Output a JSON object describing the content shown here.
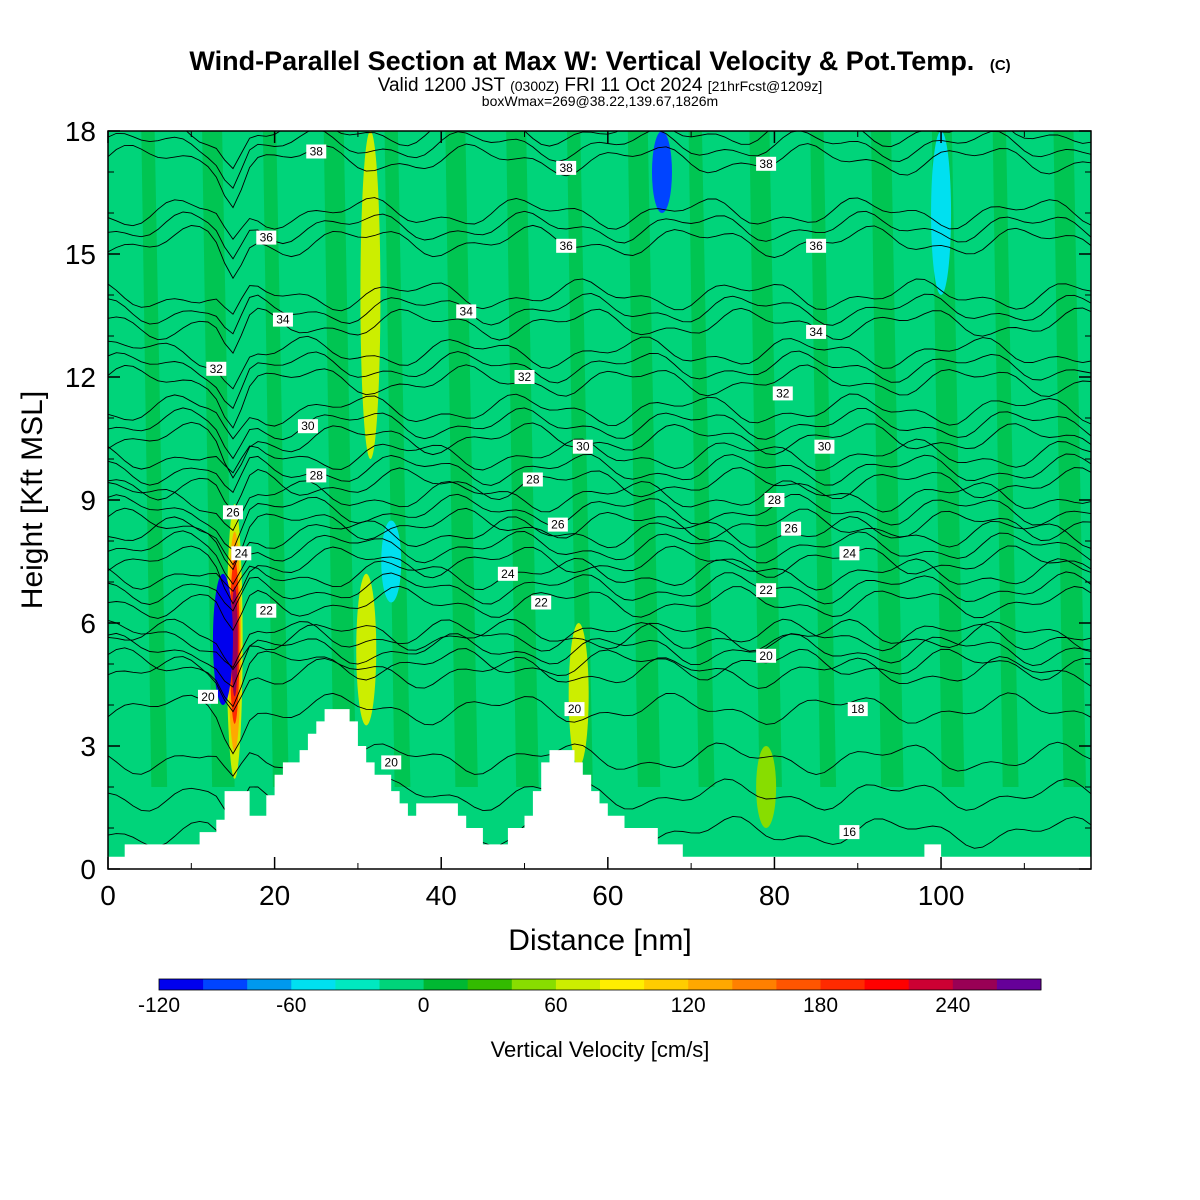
{
  "header": {
    "title": "Wind-Parallel Section at Max W: Vertical Velocity & Pot.Temp.",
    "copyright": "(C)",
    "valid_prefix": "Valid 1200 JST",
    "valid_utc": "(0300Z)",
    "valid_date": "FRI 11 Oct 2024",
    "forecast": "[21hrFcst@1209z]",
    "boxinfo": "boxWmax=269@38.22,139.67,1826m"
  },
  "chart_data": {
    "type": "heatmap",
    "xlabel": "Distance [nm]",
    "ylabel": "Height [Kft MSL]",
    "xlim": [
      0,
      118
    ],
    "ylim": [
      0,
      18
    ],
    "xticks": [
      "0",
      "20",
      "40",
      "60",
      "80",
      "100"
    ],
    "yticks": [
      "0",
      "3",
      "6",
      "9",
      "12",
      "15",
      "18"
    ],
    "background_value_cm_s": 0,
    "vertical_velocity_features": [
      {
        "x": 15.2,
        "z_bottom": 2.2,
        "z_top": 8.9,
        "w_max": 260
      },
      {
        "x": 13.8,
        "z_bottom": 4.0,
        "z_top": 7.2,
        "w_min": -110
      },
      {
        "x": 31.0,
        "z_bottom": 3.5,
        "z_top": 7.2,
        "w_max": 70
      },
      {
        "x": 31.5,
        "z_bottom": 10,
        "z_top": 18,
        "w_max": 60
      },
      {
        "x": 56.5,
        "z_bottom": 2.5,
        "z_top": 6.0,
        "w_max": 65
      },
      {
        "x": 66.5,
        "z_bottom": 16,
        "z_top": 18,
        "w_min": -90
      },
      {
        "x": 79.0,
        "z_bottom": 1.0,
        "z_top": 3.0,
        "w_max": 55
      },
      {
        "x": 100.0,
        "z_bottom": 14,
        "z_top": 18,
        "w_min": -50
      },
      {
        "x": 34.0,
        "z_bottom": 6.5,
        "z_top": 8.5,
        "w_min": -45
      }
    ],
    "potential_temperature_contours": {
      "levels": [
        16,
        18,
        20,
        22,
        24,
        26,
        28,
        30,
        32,
        34,
        36,
        38
      ],
      "labels": [
        {
          "text": "38",
          "x": 25,
          "y": 17.5
        },
        {
          "text": "38",
          "x": 55,
          "y": 17.1
        },
        {
          "text": "38",
          "x": 79,
          "y": 17.2
        },
        {
          "text": "36",
          "x": 19,
          "y": 15.4
        },
        {
          "text": "36",
          "x": 55,
          "y": 15.2
        },
        {
          "text": "36",
          "x": 85,
          "y": 15.2
        },
        {
          "text": "34",
          "x": 21,
          "y": 13.4
        },
        {
          "text": "34",
          "x": 43,
          "y": 13.6
        },
        {
          "text": "34",
          "x": 85,
          "y": 13.1
        },
        {
          "text": "32",
          "x": 13,
          "y": 12.2
        },
        {
          "text": "32",
          "x": 50,
          "y": 12.0
        },
        {
          "text": "32",
          "x": 81,
          "y": 11.6
        },
        {
          "text": "30",
          "x": 24,
          "y": 10.8
        },
        {
          "text": "30",
          "x": 57,
          "y": 10.3
        },
        {
          "text": "30",
          "x": 86,
          "y": 10.3
        },
        {
          "text": "28",
          "x": 25,
          "y": 9.6
        },
        {
          "text": "28",
          "x": 51,
          "y": 9.5
        },
        {
          "text": "28",
          "x": 80,
          "y": 9.0
        },
        {
          "text": "26",
          "x": 15,
          "y": 8.7
        },
        {
          "text": "26",
          "x": 54,
          "y": 8.4
        },
        {
          "text": "26",
          "x": 82,
          "y": 8.3
        },
        {
          "text": "24",
          "x": 16,
          "y": 7.7
        },
        {
          "text": "24",
          "x": 48,
          "y": 7.2
        },
        {
          "text": "24",
          "x": 89,
          "y": 7.7
        },
        {
          "text": "22",
          "x": 19,
          "y": 6.3
        },
        {
          "text": "22",
          "x": 52,
          "y": 6.5
        },
        {
          "text": "22",
          "x": 79,
          "y": 6.8
        },
        {
          "text": "20",
          "x": 12,
          "y": 4.2
        },
        {
          "text": "20",
          "x": 34,
          "y": 2.6
        },
        {
          "text": "20",
          "x": 56,
          "y": 3.9
        },
        {
          "text": "20",
          "x": 79,
          "y": 5.2
        },
        {
          "text": "18",
          "x": 90,
          "y": 3.9
        },
        {
          "text": "16",
          "x": 89,
          "y": 0.9
        }
      ]
    },
    "terrain_profile": [
      [
        0,
        0.3
      ],
      [
        2,
        0.3
      ],
      [
        2,
        0.6
      ],
      [
        11,
        0.6
      ],
      [
        11,
        0.9
      ],
      [
        13,
        0.9
      ],
      [
        13,
        1.2
      ],
      [
        14,
        1.2
      ],
      [
        14,
        1.9
      ],
      [
        17,
        1.9
      ],
      [
        17,
        1.3
      ],
      [
        19,
        1.3
      ],
      [
        19,
        1.8
      ],
      [
        20,
        1.8
      ],
      [
        20,
        2.3
      ],
      [
        21,
        2.3
      ],
      [
        21,
        2.6
      ],
      [
        23,
        2.6
      ],
      [
        23,
        2.9
      ],
      [
        24,
        2.9
      ],
      [
        24,
        3.3
      ],
      [
        25,
        3.3
      ],
      [
        25,
        3.6
      ],
      [
        26,
        3.6
      ],
      [
        26,
        3.9
      ],
      [
        29,
        3.9
      ],
      [
        29,
        3.6
      ],
      [
        30,
        3.6
      ],
      [
        30,
        3.0
      ],
      [
        31,
        3.0
      ],
      [
        31,
        2.6
      ],
      [
        32,
        2.6
      ],
      [
        32,
        2.3
      ],
      [
        34,
        2.3
      ],
      [
        34,
        1.9
      ],
      [
        35,
        1.9
      ],
      [
        35,
        1.6
      ],
      [
        36,
        1.6
      ],
      [
        36,
        1.3
      ],
      [
        37,
        1.3
      ],
      [
        37,
        1.6
      ],
      [
        42,
        1.6
      ],
      [
        42,
        1.3
      ],
      [
        43,
        1.3
      ],
      [
        43,
        1.0
      ],
      [
        45,
        1.0
      ],
      [
        45,
        0.6
      ],
      [
        48,
        0.6
      ],
      [
        48,
        1.0
      ],
      [
        50,
        1.0
      ],
      [
        50,
        1.3
      ],
      [
        51,
        1.3
      ],
      [
        51,
        1.9
      ],
      [
        52,
        1.9
      ],
      [
        52,
        2.6
      ],
      [
        53,
        2.6
      ],
      [
        53,
        2.9
      ],
      [
        56,
        2.9
      ],
      [
        56,
        2.6
      ],
      [
        57,
        2.6
      ],
      [
        57,
        2.3
      ],
      [
        58,
        2.3
      ],
      [
        58,
        1.9
      ],
      [
        59,
        1.9
      ],
      [
        59,
        1.6
      ],
      [
        60,
        1.6
      ],
      [
        60,
        1.3
      ],
      [
        62,
        1.3
      ],
      [
        62,
        1.0
      ],
      [
        66,
        1.0
      ],
      [
        66,
        0.6
      ],
      [
        69,
        0.6
      ],
      [
        69,
        0.3
      ],
      [
        98,
        0.3
      ],
      [
        98,
        0.6
      ],
      [
        100,
        0.6
      ],
      [
        100,
        0.3
      ],
      [
        118,
        0.3
      ]
    ]
  },
  "colorbar": {
    "label": "Vertical Velocity [cm/s]",
    "tick_labels": [
      "-120",
      "-60",
      "0",
      "60",
      "120",
      "180",
      "240"
    ],
    "tick_values": [
      -120,
      -60,
      0,
      60,
      120,
      180,
      240
    ],
    "min": -120,
    "max": 280,
    "bin_width": 20,
    "colors": [
      "#0000ee",
      "#0044ff",
      "#0099ee",
      "#00e0f0",
      "#00e8c0",
      "#00d47a",
      "#00b832",
      "#33bb00",
      "#88dd00",
      "#ccee00",
      "#ffee00",
      "#ffcc00",
      "#ffa800",
      "#ff8000",
      "#ff5500",
      "#ff2a00",
      "#ff0000",
      "#cc0033",
      "#990055",
      "#660099"
    ]
  }
}
